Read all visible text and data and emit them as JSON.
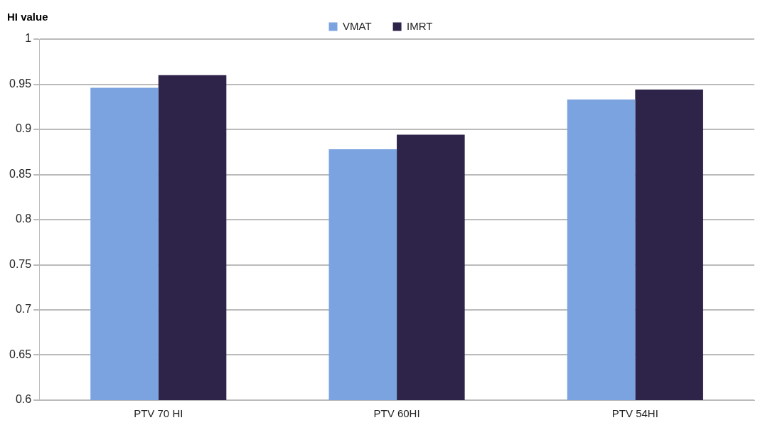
{
  "chart_data": {
    "type": "bar",
    "ylabel": "HI value",
    "categories": [
      "PTV 70 HI",
      "PTV 60HI",
      "PTV 54HI"
    ],
    "series": [
      {
        "name": "VMAT",
        "color": "#7ba3e0",
        "values": [
          0.946,
          0.878,
          0.933
        ]
      },
      {
        "name": "IMRT",
        "color": "#2e2348",
        "values": [
          0.96,
          0.894,
          0.944
        ]
      }
    ],
    "ylim": [
      0.6,
      1
    ],
    "yticks": [
      0.6,
      0.65,
      0.7,
      0.75,
      0.8,
      0.85,
      0.9,
      0.95,
      1
    ],
    "grid": "y",
    "legend": "top"
  }
}
